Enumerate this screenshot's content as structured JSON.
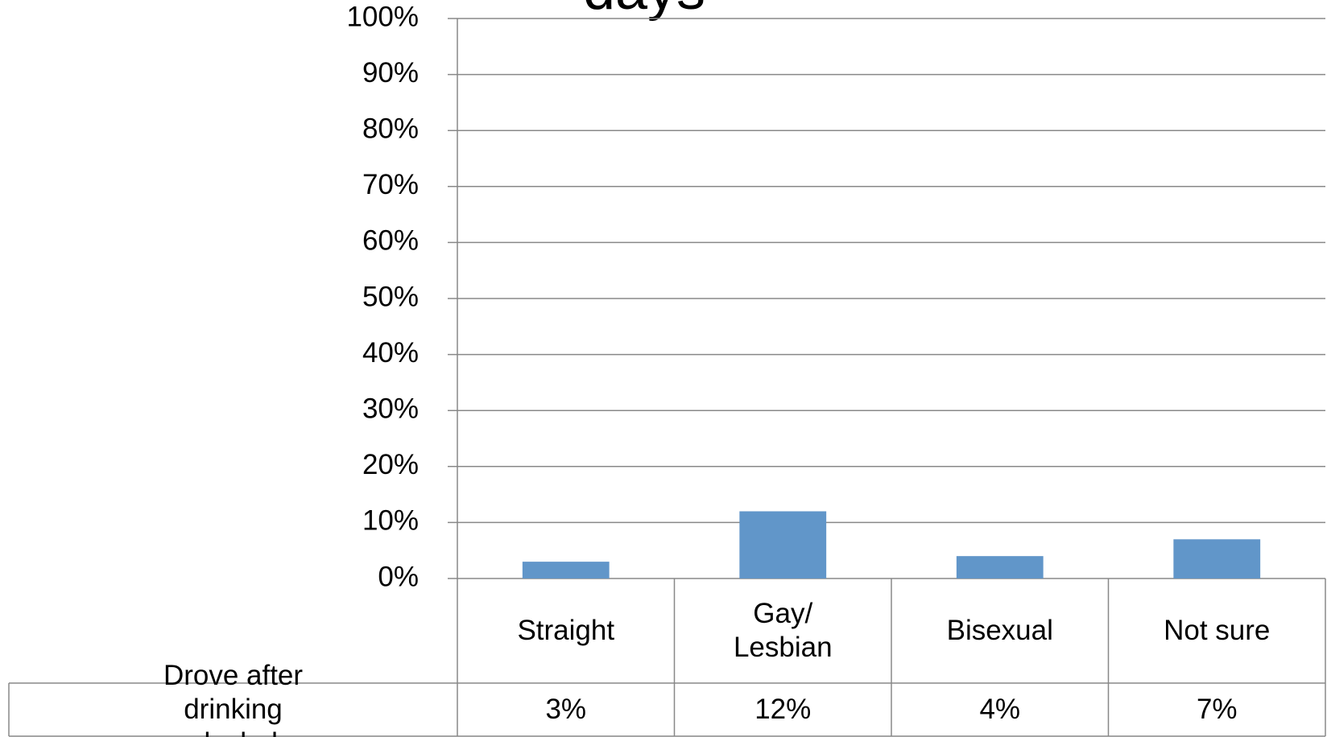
{
  "chart_data": {
    "type": "bar",
    "title": "days",
    "categories": [
      "Straight",
      "Gay/ Lesbian",
      "Bisexual",
      "Not sure"
    ],
    "series": [
      {
        "name": "Drove after drinking alcohol",
        "color": "#6196c9",
        "values": [
          3,
          12,
          4,
          7
        ],
        "value_labels": [
          "3%",
          "12%",
          "4%",
          "7%"
        ]
      }
    ],
    "ylim": [
      0,
      100
    ],
    "yticks": [
      {
        "value": 0,
        "label": "0%"
      },
      {
        "value": 10,
        "label": "10%"
      },
      {
        "value": 20,
        "label": "20%"
      },
      {
        "value": 30,
        "label": "30%"
      },
      {
        "value": 40,
        "label": "40%"
      },
      {
        "value": 50,
        "label": "50%"
      },
      {
        "value": 60,
        "label": "60%"
      },
      {
        "value": 70,
        "label": "70%"
      },
      {
        "value": 80,
        "label": "80%"
      },
      {
        "value": 90,
        "label": "90%"
      },
      {
        "value": 100,
        "label": "100%"
      }
    ],
    "grid": true,
    "data_table": true
  }
}
